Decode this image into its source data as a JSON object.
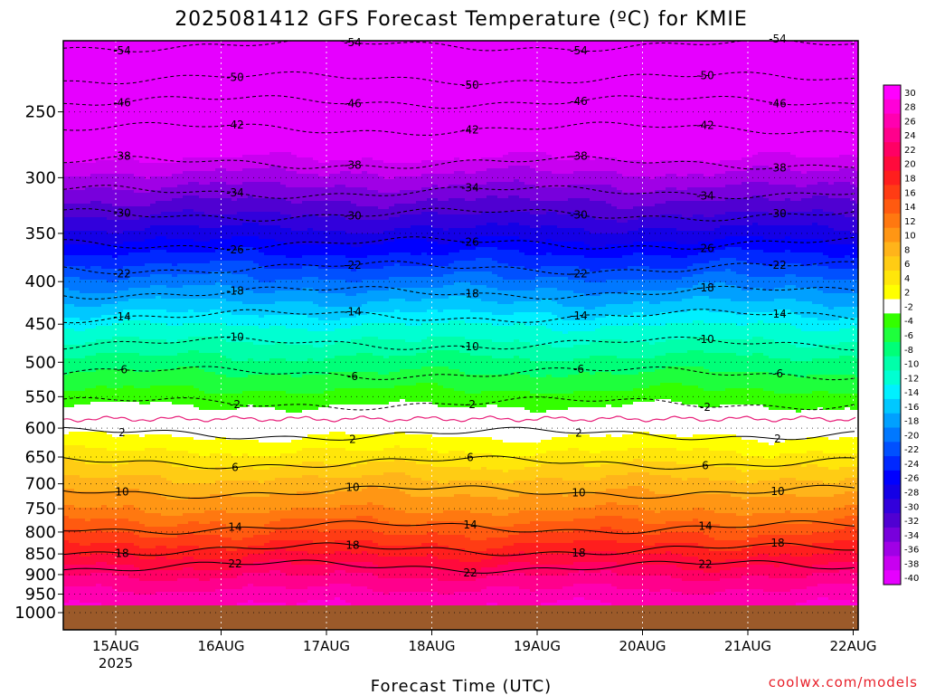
{
  "chart_data": {
    "type": "heatmap",
    "title": "2025081412 GFS Forecast Temperature (ºC) for KMIE",
    "xlabel": "Forecast Time (UTC)",
    "ylabel": "",
    "credit": "coolwx.com/models",
    "x_ticks": [
      "15AUG",
      "16AUG",
      "17AUG",
      "18AUG",
      "19AUG",
      "20AUG",
      "21AUG",
      "22AUG"
    ],
    "x_year_label": "2025",
    "x_range_days": [
      14.5,
      22.0
    ],
    "y_ticks": [
      250,
      300,
      350,
      400,
      450,
      500,
      550,
      600,
      650,
      700,
      750,
      800,
      850,
      900,
      950,
      1000
    ],
    "y_range_hpa": [
      200,
      1000
    ],
    "y_scale": "log",
    "colorbar": {
      "labels": [
        30,
        28,
        26,
        24,
        22,
        20,
        18,
        16,
        14,
        12,
        10,
        8,
        6,
        4,
        2,
        -2,
        -4,
        -6,
        -8,
        -10,
        -12,
        -14,
        -16,
        -18,
        -20,
        -22,
        -24,
        -26,
        -28,
        -30,
        -32,
        -34,
        -36,
        -38,
        -40
      ],
      "colors": [
        "#ff00ff",
        "#ff00d8",
        "#ff00b0",
        "#ff008c",
        "#ff0064",
        "#ff0a3c",
        "#ff1e1e",
        "#ff3c14",
        "#ff5a10",
        "#ff7810",
        "#ff9614",
        "#ffb41a",
        "#ffcc14",
        "#ffe60a",
        "#ffff00",
        "#ffffff",
        "#33ff00",
        "#1eff3c",
        "#00ff78",
        "#00ffaa",
        "#00ffd2",
        "#00f0ff",
        "#00c8ff",
        "#00a0ff",
        "#0078ff",
        "#0050ff",
        "#0028ff",
        "#0000ff",
        "#1400e6",
        "#3200dc",
        "#5000d2",
        "#7800dc",
        "#a000e6",
        "#c800f0",
        "#e600ff"
      ]
    },
    "contour_labels_hpa_by_temp": [
      {
        "temp": "-54",
        "hpa": 208
      },
      {
        "temp": "-50",
        "hpa": 228
      },
      {
        "temp": "-46",
        "hpa": 243
      },
      {
        "temp": "-42",
        "hpa": 262
      },
      {
        "temp": "-38",
        "hpa": 288
      },
      {
        "temp": "-34",
        "hpa": 312
      },
      {
        "temp": "-30",
        "hpa": 332
      },
      {
        "temp": "-26",
        "hpa": 360
      },
      {
        "temp": "-22",
        "hpa": 385
      },
      {
        "temp": "-18",
        "hpa": 412
      },
      {
        "temp": "-14",
        "hpa": 440
      },
      {
        "temp": "-10",
        "hpa": 475
      },
      {
        "temp": "-6",
        "hpa": 515
      },
      {
        "temp": "-2",
        "hpa": 560
      },
      {
        "temp": "2",
        "hpa": 610
      },
      {
        "temp": "6",
        "hpa": 660
      },
      {
        "temp": "10",
        "hpa": 715
      },
      {
        "temp": "14",
        "hpa": 790
      },
      {
        "temp": "18",
        "hpa": 840
      },
      {
        "temp": "22",
        "hpa": 880
      }
    ],
    "profile_temp_by_hpa": [
      {
        "hpa": 200,
        "temp": -56
      },
      {
        "hpa": 250,
        "temp": -44
      },
      {
        "hpa": 300,
        "temp": -35
      },
      {
        "hpa": 350,
        "temp": -27
      },
      {
        "hpa": 400,
        "temp": -19
      },
      {
        "hpa": 450,
        "temp": -12
      },
      {
        "hpa": 500,
        "temp": -7
      },
      {
        "hpa": 550,
        "temp": -3
      },
      {
        "hpa": 600,
        "temp": 1
      },
      {
        "hpa": 650,
        "temp": 5
      },
      {
        "hpa": 700,
        "temp": 9
      },
      {
        "hpa": 750,
        "temp": 12
      },
      {
        "hpa": 800,
        "temp": 16
      },
      {
        "hpa": 850,
        "temp": 20
      },
      {
        "hpa": 900,
        "temp": 24
      },
      {
        "hpa": 950,
        "temp": 27
      },
      {
        "hpa": 1000,
        "temp": 29
      }
    ],
    "surface_color": "#9b5a2a",
    "freezing_line_color": "#e8207a",
    "grid": "dotted"
  }
}
